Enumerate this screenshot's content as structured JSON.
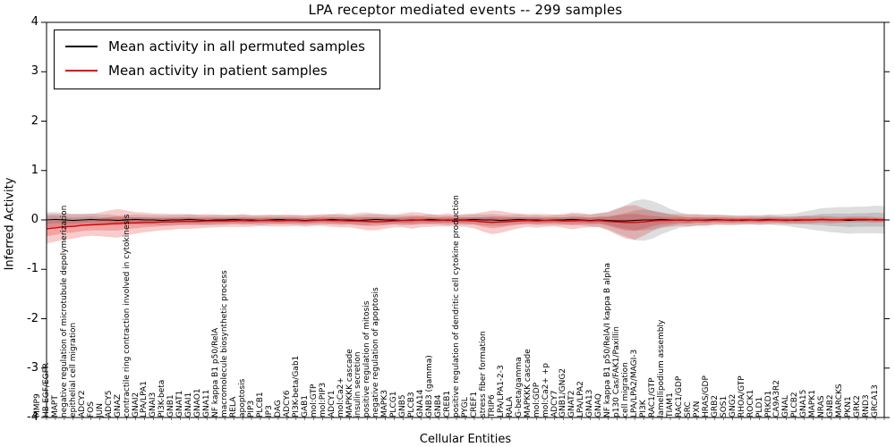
{
  "chart_data": {
    "type": "line",
    "title": "LPA receptor mediated events -- 299 samples",
    "xlabel": "Cellular Entities",
    "ylabel": "Inferred Activity",
    "ylim": [
      -4,
      4
    ],
    "y_ticks": [
      "4",
      "3",
      "2",
      "1",
      "0",
      "-1",
      "-2",
      "-3",
      "-4"
    ],
    "grid": false,
    "legend_position": "upper left",
    "categories": [
      "MMP9",
      "HB-EGF/EGFR",
      "MAPT",
      "negative regulation of microtubule depolymerization",
      "epithelial cell migration",
      "ADCY2",
      "FOS",
      "JUN",
      "ADCY5",
      "GNAZ",
      "contractile ring contraction involved in cytokinesis",
      "GNAI2",
      "LPA/LPA1",
      "GNAI3",
      "PI3K-beta",
      "GNB1",
      "GNAT1",
      "GNAI1",
      "GNAO1",
      "GNA11",
      "NF kappa B1 p50/RelA",
      "macromolecule biosynthetic process",
      "RELA",
      "apoptosis",
      "PIP3",
      "PLCB1",
      "IP3",
      "DAG",
      "ADCY6",
      "PI3K-beta/Gab1",
      "GAB1",
      "mol:GTP",
      "mol:PIP3",
      "ADCY1",
      "mol:Ca2+",
      "MAPKKK cascade",
      "insulin secretion",
      "positive regulation of mitosis",
      "negative regulation of apoptosis",
      "MAPK3",
      "PLCG1",
      "GNB5",
      "PLCB3",
      "GNA14",
      "GNB3 (gamma)",
      "GNB4",
      "CREB1",
      "positive regulation of dendritic cell cytokine production",
      "PYGL",
      "CREF1",
      "stress fiber formation",
      "TRIP6",
      "LPA/LPA1-2-3",
      "RALA",
      "G-beta/gamma",
      "MAPKKK cascade",
      "mol:GDP",
      "mol:Ca2+ +p",
      "ADCY7",
      "GNB1/GNG2",
      "GNAT2",
      "LPA/LPA2",
      "GNA13",
      "GNAQ",
      "NF kappa B1 p50/RelA/I kappa B alpha",
      "p130 Cas/FAK1/Paxillin",
      "cell migration",
      "LPA/LPA2/MAGI-3",
      "PI3K",
      "RAC1/GTP",
      "lamellipodium assembly",
      "TIAM1",
      "RAC1/GDP",
      "SRC",
      "PXN",
      "HRAS/GDP",
      "GRB2",
      "SOS1",
      "GNG2",
      "RHOA/GTP",
      "ROCK1",
      "PLD1",
      "PRKD1",
      "CA9A3R2",
      "GNAL",
      "PLCB2",
      "GNA15",
      "MAPK1",
      "NRAS",
      "GNB2",
      "MARCKS",
      "PKN1",
      "GRK2",
      "RND3",
      "GRCA13"
    ],
    "series": [
      {
        "name": "Mean activity in all permuted samples",
        "color": "#000000",
        "band_color": "rgba(0,0,0,0.13)",
        "values": [
          0.0,
          0.01,
          0.0,
          -0.01,
          0.0,
          0.01,
          0.0,
          0.0,
          -0.01,
          0.0,
          0.01,
          0.0,
          0.0,
          -0.01,
          0.0,
          0.0,
          0.01,
          0.0,
          -0.01,
          0.0,
          0.0,
          0.01,
          0.0,
          0.0,
          -0.01,
          0.0,
          0.01,
          0.0,
          0.0,
          -0.01,
          0.0,
          0.0,
          0.01,
          0.0,
          0.0,
          -0.01,
          0.0,
          0.01,
          0.0,
          0.0,
          -0.01,
          0.0,
          0.0,
          0.01,
          0.0,
          -0.01,
          0.0,
          0.0,
          0.01,
          0.0,
          0.0,
          -0.01,
          0.0,
          0.01,
          0.0,
          0.0,
          -0.01,
          0.0,
          0.0,
          0.01,
          0.0,
          -0.01,
          0.0,
          -0.01,
          -0.02,
          -0.02,
          -0.01,
          0.0,
          0.0,
          0.01,
          0.0,
          0.0,
          -0.01,
          0.0,
          0.0,
          0.01,
          0.0,
          0.0,
          -0.01,
          0.0,
          0.0,
          0.01,
          0.0,
          0.0,
          -0.01,
          0.0,
          0.0,
          0.01,
          0.0,
          0.0,
          -0.01,
          0.0,
          0.0,
          0.01,
          0.0
        ],
        "band_halfwidth": [
          0.16,
          0.15,
          0.14,
          0.13,
          0.12,
          0.12,
          0.11,
          0.11,
          0.1,
          0.1,
          0.1,
          0.1,
          0.1,
          0.1,
          0.1,
          0.1,
          0.1,
          0.1,
          0.1,
          0.1,
          0.1,
          0.09,
          0.1,
          0.09,
          0.1,
          0.09,
          0.1,
          0.09,
          0.1,
          0.09,
          0.1,
          0.09,
          0.1,
          0.1,
          0.09,
          0.1,
          0.11,
          0.1,
          0.1,
          0.09,
          0.1,
          0.1,
          0.09,
          0.1,
          0.09,
          0.1,
          0.09,
          0.1,
          0.1,
          0.11,
          0.12,
          0.11,
          0.1,
          0.1,
          0.09,
          0.1,
          0.09,
          0.1,
          0.1,
          0.11,
          0.11,
          0.12,
          0.14,
          0.18,
          0.25,
          0.32,
          0.4,
          0.42,
          0.38,
          0.3,
          0.22,
          0.16,
          0.13,
          0.12,
          0.11,
          0.1,
          0.1,
          0.09,
          0.09,
          0.09,
          0.1,
          0.1,
          0.11,
          0.12,
          0.14,
          0.17,
          0.2,
          0.23,
          0.25,
          0.26,
          0.27,
          0.27,
          0.27,
          0.28,
          0.28
        ]
      },
      {
        "name": "Mean activity in patient samples",
        "color": "#dd0000",
        "band_color": "rgba(221,0,0,0.20)",
        "values": [
          -0.18,
          -0.16,
          -0.14,
          -0.13,
          -0.11,
          -0.1,
          -0.09,
          -0.08,
          -0.07,
          -0.06,
          -0.06,
          -0.05,
          -0.05,
          -0.04,
          -0.04,
          -0.03,
          -0.03,
          -0.03,
          -0.02,
          -0.02,
          -0.02,
          -0.02,
          -0.01,
          -0.02,
          -0.01,
          -0.01,
          -0.02,
          -0.01,
          -0.01,
          -0.02,
          -0.01,
          0.0,
          -0.01,
          -0.01,
          -0.02,
          -0.02,
          -0.03,
          -0.04,
          -0.03,
          -0.02,
          -0.01,
          -0.01,
          0.0,
          -0.01,
          -0.01,
          0.0,
          -0.01,
          -0.01,
          -0.02,
          -0.04,
          -0.05,
          -0.04,
          -0.03,
          -0.02,
          -0.01,
          -0.02,
          -0.01,
          -0.01,
          -0.02,
          -0.02,
          -0.01,
          -0.02,
          -0.01,
          -0.03,
          -0.04,
          -0.05,
          -0.05,
          -0.04,
          -0.02,
          -0.01,
          -0.01,
          0.0,
          -0.01,
          0.0,
          -0.01,
          0.0,
          0.0,
          -0.01,
          0.0,
          0.0,
          -0.01,
          0.0,
          0.0,
          -0.01,
          0.0,
          0.0,
          0.0,
          0.01,
          0.0,
          0.0,
          0.01,
          0.01,
          0.01,
          0.0,
          0.0
        ],
        "band_halfwidth": [
          0.3,
          0.28,
          0.26,
          0.25,
          0.23,
          0.22,
          0.24,
          0.27,
          0.29,
          0.25,
          0.22,
          0.2,
          0.18,
          0.17,
          0.16,
          0.15,
          0.15,
          0.14,
          0.14,
          0.13,
          0.12,
          0.12,
          0.13,
          0.12,
          0.11,
          0.12,
          0.11,
          0.12,
          0.11,
          0.12,
          0.11,
          0.12,
          0.13,
          0.14,
          0.13,
          0.16,
          0.18,
          0.17,
          0.15,
          0.13,
          0.14,
          0.17,
          0.15,
          0.13,
          0.12,
          0.13,
          0.12,
          0.13,
          0.15,
          0.2,
          0.24,
          0.22,
          0.18,
          0.15,
          0.13,
          0.14,
          0.13,
          0.12,
          0.14,
          0.17,
          0.15,
          0.13,
          0.14,
          0.18,
          0.26,
          0.33,
          0.35,
          0.28,
          0.2,
          0.15,
          0.13,
          0.12,
          0.12,
          0.11,
          0.11,
          0.1,
          0.1,
          0.1,
          0.09,
          0.09,
          0.09,
          0.09,
          0.08,
          0.08,
          0.08,
          0.08,
          0.07,
          0.07,
          0.07,
          0.06,
          0.06,
          0.06,
          0.06,
          0.06,
          0.05
        ]
      }
    ]
  }
}
